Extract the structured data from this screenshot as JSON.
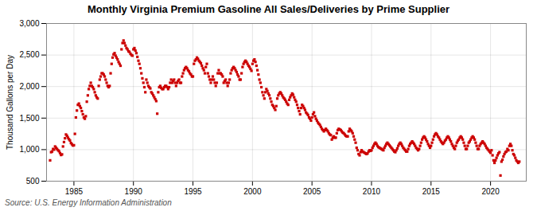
{
  "chart_data": {
    "type": "scatter",
    "title": "Monthly Virginia Premium Gasoline All Sales/Deliveries by Prime Supplier",
    "y_label": "Thousand Gallons per Day",
    "source": "Source: U.S. Energy Information Administration",
    "color": "#cc0000",
    "marker": "square",
    "grid": true,
    "xlim": [
      1982.7,
      2023.0
    ],
    "ylim": [
      500,
      3000
    ],
    "xticks": [
      1985,
      1990,
      1995,
      2000,
      2005,
      2010,
      2015,
      2020
    ],
    "yticks": [
      500,
      {
        "value": 1000,
        "label": "1,000"
      },
      {
        "value": 1500,
        "label": "1,500"
      },
      {
        "value": 2000,
        "label": "2,000"
      },
      {
        "value": 2500,
        "label": "2,500"
      },
      {
        "value": 3000,
        "label": "3,000"
      }
    ],
    "x": [
      1983.0,
      1983.083,
      1983.167,
      1983.25,
      1983.333,
      1983.417,
      1983.5,
      1983.583,
      1983.667,
      1983.75,
      1983.833,
      1983.917,
      1984.0,
      1984.083,
      1984.167,
      1984.25,
      1984.333,
      1984.417,
      1984.5,
      1984.583,
      1984.667,
      1984.75,
      1984.833,
      1984.917,
      1985.0,
      1985.083,
      1985.167,
      1985.25,
      1985.333,
      1985.417,
      1985.5,
      1985.583,
      1985.667,
      1985.75,
      1985.833,
      1985.917,
      1986.0,
      1986.083,
      1986.167,
      1986.25,
      1986.333,
      1986.417,
      1986.5,
      1986.583,
      1986.667,
      1986.75,
      1986.833,
      1986.917,
      1987.0,
      1987.083,
      1987.167,
      1987.25,
      1987.333,
      1987.417,
      1987.5,
      1987.583,
      1987.667,
      1987.75,
      1987.833,
      1987.917,
      1988.0,
      1988.083,
      1988.167,
      1988.25,
      1988.333,
      1988.417,
      1988.5,
      1988.583,
      1988.667,
      1988.75,
      1988.833,
      1988.917,
      1989.0,
      1989.083,
      1989.167,
      1989.25,
      1989.333,
      1989.417,
      1989.5,
      1989.583,
      1989.667,
      1989.75,
      1989.833,
      1989.917,
      1990.0,
      1990.083,
      1990.167,
      1990.25,
      1990.333,
      1990.417,
      1990.5,
      1990.583,
      1990.667,
      1990.75,
      1990.833,
      1990.917,
      1991.0,
      1991.083,
      1991.167,
      1991.25,
      1991.333,
      1991.417,
      1991.5,
      1991.583,
      1991.667,
      1991.75,
      1991.833,
      1991.917,
      1992.0,
      1992.083,
      1992.167,
      1992.25,
      1992.333,
      1992.417,
      1992.5,
      1992.583,
      1992.667,
      1992.75,
      1992.833,
      1992.917,
      1993.0,
      1993.083,
      1993.167,
      1993.25,
      1993.333,
      1993.417,
      1993.5,
      1993.583,
      1993.667,
      1993.75,
      1993.833,
      1993.917,
      1994.0,
      1994.083,
      1994.167,
      1994.25,
      1994.333,
      1994.417,
      1994.5,
      1994.583,
      1994.667,
      1994.75,
      1994.833,
      1994.917,
      1995.0,
      1995.083,
      1995.167,
      1995.25,
      1995.333,
      1995.417,
      1995.5,
      1995.583,
      1995.667,
      1995.75,
      1995.833,
      1995.917,
      1996.0,
      1996.083,
      1996.167,
      1996.25,
      1996.333,
      1996.417,
      1996.5,
      1996.583,
      1996.667,
      1996.75,
      1996.833,
      1996.917,
      1997.0,
      1997.083,
      1997.167,
      1997.25,
      1997.333,
      1997.417,
      1997.5,
      1997.583,
      1997.667,
      1997.75,
      1997.833,
      1997.917,
      1998.0,
      1998.083,
      1998.167,
      1998.25,
      1998.333,
      1998.417,
      1998.5,
      1998.583,
      1998.667,
      1998.75,
      1998.833,
      1998.917,
      1999.0,
      1999.083,
      1999.167,
      1999.25,
      1999.333,
      1999.417,
      1999.5,
      1999.583,
      1999.667,
      1999.75,
      1999.833,
      1999.917,
      2000.0,
      2000.083,
      2000.167,
      2000.25,
      2000.333,
      2000.417,
      2000.5,
      2000.583,
      2000.667,
      2000.75,
      2000.833,
      2000.917,
      2001.0,
      2001.083,
      2001.167,
      2001.25,
      2001.333,
      2001.417,
      2001.5,
      2001.583,
      2001.667,
      2001.75,
      2001.833,
      2001.917,
      2002.0,
      2002.083,
      2002.167,
      2002.25,
      2002.333,
      2002.417,
      2002.5,
      2002.583,
      2002.667,
      2002.75,
      2002.833,
      2002.917,
      2003.0,
      2003.083,
      2003.167,
      2003.25,
      2003.333,
      2003.417,
      2003.5,
      2003.583,
      2003.667,
      2003.75,
      2003.833,
      2003.917,
      2004.0,
      2004.083,
      2004.167,
      2004.25,
      2004.333,
      2004.417,
      2004.5,
      2004.583,
      2004.667,
      2004.75,
      2004.833,
      2004.917,
      2005.0,
      2005.083,
      2005.167,
      2005.25,
      2005.333,
      2005.417,
      2005.5,
      2005.583,
      2005.667,
      2005.75,
      2005.833,
      2005.917,
      2006.0,
      2006.083,
      2006.167,
      2006.25,
      2006.333,
      2006.417,
      2006.5,
      2006.583,
      2006.667,
      2006.75,
      2006.833,
      2006.917,
      2007.0,
      2007.083,
      2007.167,
      2007.25,
      2007.333,
      2007.417,
      2007.5,
      2007.583,
      2007.667,
      2007.75,
      2007.833,
      2007.917,
      2008.0,
      2008.083,
      2008.167,
      2008.25,
      2008.333,
      2008.417,
      2008.5,
      2008.583,
      2008.667,
      2008.75,
      2008.833,
      2008.917,
      2009.0,
      2009.083,
      2009.167,
      2009.25,
      2009.333,
      2009.417,
      2009.5,
      2009.583,
      2009.667,
      2009.75,
      2009.833,
      2009.917,
      2010.0,
      2010.083,
      2010.167,
      2010.25,
      2010.333,
      2010.417,
      2010.5,
      2010.583,
      2010.667,
      2010.75,
      2010.833,
      2010.917,
      2011.0,
      2011.083,
      2011.167,
      2011.25,
      2011.333,
      2011.417,
      2011.5,
      2011.583,
      2011.667,
      2011.75,
      2011.833,
      2011.917,
      2012.0,
      2012.083,
      2012.167,
      2012.25,
      2012.333,
      2012.417,
      2012.5,
      2012.583,
      2012.667,
      2012.75,
      2012.833,
      2012.917,
      2013.0,
      2013.083,
      2013.167,
      2013.25,
      2013.333,
      2013.417,
      2013.5,
      2013.583,
      2013.667,
      2013.75,
      2013.833,
      2013.917,
      2014.0,
      2014.083,
      2014.167,
      2014.25,
      2014.333,
      2014.417,
      2014.5,
      2014.583,
      2014.667,
      2014.75,
      2014.833,
      2014.917,
      2015.0,
      2015.083,
      2015.167,
      2015.25,
      2015.333,
      2015.417,
      2015.5,
      2015.583,
      2015.667,
      2015.75,
      2015.833,
      2015.917,
      2016.0,
      2016.083,
      2016.167,
      2016.25,
      2016.333,
      2016.417,
      2016.5,
      2016.583,
      2016.667,
      2016.75,
      2016.833,
      2016.917,
      2017.0,
      2017.083,
      2017.167,
      2017.25,
      2017.333,
      2017.417,
      2017.5,
      2017.583,
      2017.667,
      2017.75,
      2017.833,
      2017.917,
      2018.0,
      2018.083,
      2018.167,
      2018.25,
      2018.333,
      2018.417,
      2018.5,
      2018.583,
      2018.667,
      2018.75,
      2018.833,
      2018.917,
      2019.0,
      2019.083,
      2019.167,
      2019.25,
      2019.333,
      2019.417,
      2019.5,
      2019.583,
      2019.667,
      2019.75,
      2019.833,
      2019.917,
      2020.0,
      2020.083,
      2020.167,
      2020.25,
      2020.333,
      2020.417,
      2020.5,
      2020.583,
      2020.667,
      2020.75,
      2020.833,
      2020.917,
      2021.0,
      2021.083,
      2021.167,
      2021.25,
      2021.333,
      2021.417,
      2021.5,
      2021.583,
      2021.667,
      2021.75,
      2021.833,
      2021.917,
      2022.0,
      2022.083,
      2022.167,
      2022.25,
      2022.333,
      2022.417
    ],
    "values": [
      830,
      960,
      970,
      1010,
      1000,
      1050,
      1030,
      1010,
      990,
      975,
      945,
      915,
      925,
      1050,
      1120,
      1180,
      1240,
      1220,
      1190,
      1165,
      1145,
      1105,
      1085,
      1065,
      1070,
      1250,
      1510,
      1620,
      1710,
      1730,
      1690,
      1660,
      1610,
      1560,
      1510,
      1490,
      1530,
      1760,
      1860,
      1960,
      2010,
      2060,
      2010,
      1990,
      1960,
      1910,
      1860,
      1830,
      1810,
      2010,
      2110,
      2160,
      2210,
      2210,
      2190,
      2160,
      2110,
      2060,
      2010,
      1990,
      2010,
      2210,
      2360,
      2460,
      2510,
      2530,
      2490,
      2460,
      2430,
      2390,
      2360,
      2330,
      2590,
      2690,
      2730,
      2690,
      2650,
      2610,
      2590,
      2560,
      2550,
      2520,
      2500,
      2490,
      2590,
      2610,
      2570,
      2530,
      2470,
      2410,
      2360,
      2290,
      2210,
      2130,
      2060,
      1990,
      1910,
      2110,
      2060,
      2010,
      1990,
      1970,
      1910,
      1890,
      1860,
      1830,
      1800,
      1770,
      1570,
      1910,
      1990,
      2010,
      1980,
      1960,
      1960,
      1990,
      2010,
      2010,
      1990,
      1960,
      1990,
      2060,
      2110,
      2060,
      2090,
      2110,
      2060,
      2010,
      2060,
      2090,
      2110,
      2060,
      2060,
      2160,
      2210,
      2260,
      2290,
      2310,
      2290,
      2260,
      2240,
      2210,
      2190,
      2160,
      2160,
      2360,
      2410,
      2430,
      2460,
      2440,
      2410,
      2390,
      2370,
      2330,
      2290,
      2260,
      2210,
      2310,
      2360,
      2210,
      2160,
      2110,
      2060,
      2110,
      2160,
      2110,
      2060,
      2010,
      2060,
      2210,
      2260,
      2210,
      2210,
      2190,
      2160,
      2060,
      2090,
      2110,
      2060,
      2010,
      2060,
      2110,
      2210,
      2260,
      2290,
      2310,
      2290,
      2260,
      2230,
      2190,
      2160,
      2110,
      2110,
      2210,
      2310,
      2360,
      2390,
      2410,
      2390,
      2360,
      2330,
      2310,
      2280,
      2250,
      2360,
      2410,
      2430,
      2390,
      2330,
      2260,
      2190,
      2110,
      2060,
      1990,
      1910,
      1860,
      1810,
      1910,
      1960,
      1930,
      1890,
      1860,
      1810,
      1760,
      1710,
      1690,
      1660,
      1630,
      1690,
      1810,
      1860,
      1890,
      1910,
      1890,
      1860,
      1830,
      1810,
      1790,
      1760,
      1730,
      1710,
      1790,
      1830,
      1860,
      1890,
      1870,
      1830,
      1790,
      1760,
      1710,
      1660,
      1610,
      1560,
      1660,
      1710,
      1690,
      1660,
      1630,
      1590,
      1570,
      1550,
      1510,
      1490,
      1460,
      1510,
      1560,
      1590,
      1530,
      1490,
      1460,
      1430,
      1410,
      1390,
      1360,
      1330,
      1310,
      1290,
      1310,
      1330,
      1310,
      1290,
      1260,
      1240,
      1230,
      1160,
      1190,
      1210,
      1190,
      1190,
      1260,
      1310,
      1330,
      1320,
      1310,
      1290,
      1270,
      1260,
      1240,
      1220,
      1210,
      1210,
      1290,
      1330,
      1310,
      1290,
      1260,
      1210,
      1160,
      1110,
      1030,
      990,
      930,
      910,
      960,
      990,
      970,
      960,
      950,
      940,
      930,
      940,
      970,
      990,
      980,
      990,
      1030,
      1060,
      1090,
      1110,
      1090,
      1060,
      1040,
      1030,
      1020,
      1010,
      1000,
      990,
      1030,
      1060,
      1090,
      1110,
      1090,
      1070,
      1050,
      1030,
      1010,
      990,
      970,
      960,
      990,
      1020,
      1060,
      1090,
      1110,
      1090,
      1060,
      1030,
      1010,
      990,
      970,
      970,
      1010,
      1060,
      1090,
      1110,
      1130,
      1110,
      1090,
      1060,
      1030,
      1010,
      990,
      1010,
      1060,
      1110,
      1160,
      1190,
      1210,
      1190,
      1160,
      1130,
      1090,
      1060,
      1030,
      1060,
      1110,
      1160,
      1210,
      1240,
      1260,
      1240,
      1210,
      1190,
      1160,
      1130,
      1110,
      1090,
      1110,
      1140,
      1160,
      1190,
      1210,
      1190,
      1160,
      1130,
      1090,
      1060,
      1030,
      1010,
      1060,
      1110,
      1140,
      1160,
      1190,
      1210,
      1190,
      1160,
      1110,
      1060,
      1010,
      1010,
      1060,
      1110,
      1130,
      1160,
      1190,
      1210,
      1190,
      1160,
      1110,
      1060,
      1010,
      1010,
      1060,
      1090,
      1110,
      1130,
      1110,
      1090,
      1060,
      1030,
      1010,
      990,
      970,
      950,
      990,
      910,
      830,
      790,
      830,
      870,
      910,
      940,
      960,
      590,
      810,
      840,
      890,
      930,
      960,
      970,
      1010,
      990,
      1060,
      1090,
      1060,
      990,
      930,
      910,
      870,
      830,
      810,
      790,
      810
    ]
  }
}
